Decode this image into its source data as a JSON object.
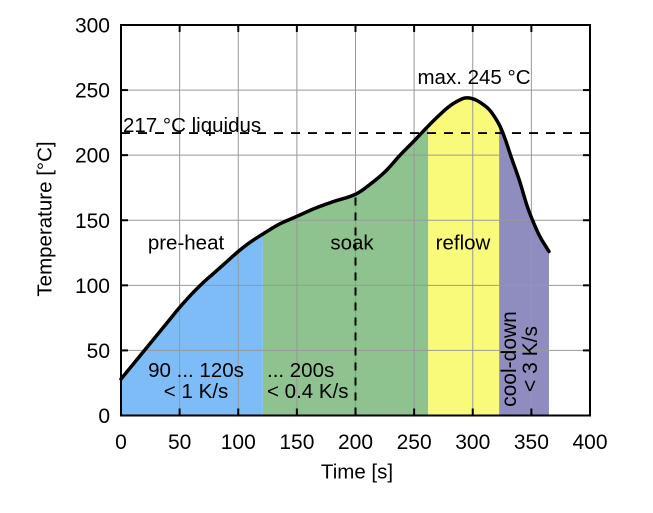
{
  "chart_data": {
    "type": "line",
    "title": "",
    "xlabel": "Time [s]",
    "ylabel": "Temperature [°C]",
    "xlim": [
      0,
      400
    ],
    "ylim": [
      0,
      300
    ],
    "x_ticks": [
      0,
      50,
      100,
      150,
      200,
      250,
      300,
      350,
      400
    ],
    "y_ticks": [
      0,
      50,
      100,
      150,
      200,
      250,
      300
    ],
    "grid": true,
    "grid_color": "#999999",
    "curve_color": "#000000",
    "profile_points": [
      [
        0,
        28
      ],
      [
        10,
        39
      ],
      [
        20,
        50
      ],
      [
        30,
        61
      ],
      [
        40,
        72
      ],
      [
        50,
        83
      ],
      [
        60,
        93
      ],
      [
        70,
        102
      ],
      [
        80,
        110
      ],
      [
        90,
        118
      ],
      [
        100,
        126
      ],
      [
        110,
        133
      ],
      [
        122,
        140
      ],
      [
        135,
        147
      ],
      [
        150,
        153
      ],
      [
        165,
        159
      ],
      [
        180,
        164
      ],
      [
        200,
        170
      ],
      [
        213,
        178
      ],
      [
        226,
        188
      ],
      [
        238,
        200
      ],
      [
        250,
        211
      ],
      [
        260,
        220.5
      ],
      [
        270,
        229.5
      ],
      [
        280,
        237.5
      ],
      [
        288,
        242
      ],
      [
        294,
        244
      ],
      [
        301,
        243
      ],
      [
        308,
        239.5
      ],
      [
        315,
        234
      ],
      [
        322.5,
        223.5
      ],
      [
        327,
        214
      ],
      [
        333,
        198
      ],
      [
        340,
        180
      ],
      [
        346,
        162
      ],
      [
        351,
        150
      ],
      [
        357,
        138
      ],
      [
        365,
        126
      ]
    ],
    "liquidus": {
      "temperature": 217,
      "label": "217 °C liquidus"
    },
    "annotations": {
      "max_temp": "max. 245 °C"
    },
    "soak_marker_x": 200,
    "regions": [
      {
        "label": "pre-heat",
        "from": 0,
        "to": 121,
        "color": "#7DBCF6",
        "duration": "90 ... 120s",
        "rate": "< 1 K/s"
      },
      {
        "label": "soak",
        "from": 121,
        "to": 262,
        "color": "#8EC28E",
        "duration": "... 200s",
        "rate": "< 0.4 K/s"
      },
      {
        "label": "reflow",
        "from": 262,
        "to": 322.5,
        "color": "#FAFA7A"
      },
      {
        "label": "cool-down",
        "from": 322.5,
        "to": 365,
        "color": "#8F8CBF",
        "rate": "< 3 K/s"
      }
    ]
  }
}
